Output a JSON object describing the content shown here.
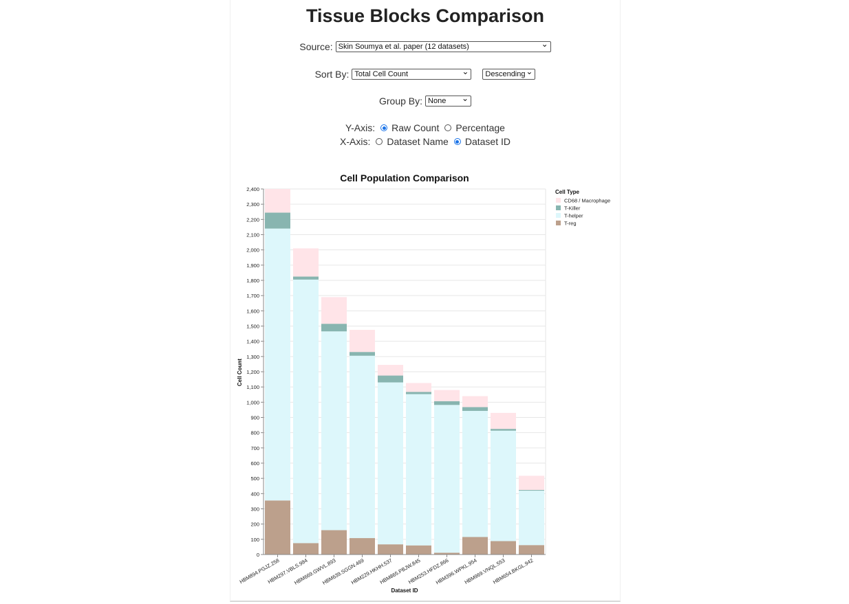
{
  "page": {
    "title": "Tissue Blocks Comparison"
  },
  "controls": {
    "source_label": "Source:",
    "source_value": "Skin Soumya et al. paper (12 datasets)",
    "sort_label": "Sort By:",
    "sort_value": "Total Cell Count",
    "sort_order_value": "Descending",
    "group_label": "Group By:",
    "group_value": "None",
    "yaxis_label": "Y-Axis:",
    "yaxis_options": [
      "Raw Count",
      "Percentage"
    ],
    "yaxis_selected": "Raw Count",
    "xaxis_label": "X-Axis:",
    "xaxis_options": [
      "Dataset Name",
      "Dataset ID"
    ],
    "xaxis_selected": "Dataset ID"
  },
  "chart_data": {
    "type": "bar",
    "stacked": true,
    "title": "Cell Population Comparison",
    "xlabel": "Dataset ID",
    "ylabel": "Cell Count",
    "ylim": [
      0,
      2400
    ],
    "ytick_step": 100,
    "legend_title": "Cell Type",
    "legend_position": "top-right",
    "categories": [
      "HBM894.PGJZ.258",
      "HBM297.VBLS.984",
      "HBM669.GWVL.893",
      "HBM639.SGGN.469",
      "HBM229.HKHH.537",
      "HBM865.PBJW.845",
      "HBM253.HFDZ.866",
      "HBM396.WPKL.954",
      "HBM969.VNQL.553",
      "HBM654.BKGL.942"
    ],
    "series": [
      {
        "name": "T-reg",
        "color": "#bca08c",
        "values": [
          355,
          75,
          160,
          108,
          67,
          60,
          12,
          115,
          88,
          62
        ]
      },
      {
        "name": "T-helper",
        "color": "#ddf7fb",
        "values": [
          1785,
          1730,
          1305,
          1197,
          1063,
          993,
          970,
          828,
          725,
          357
        ]
      },
      {
        "name": "T-Killer",
        "color": "#88b5b0",
        "values": [
          105,
          20,
          50,
          25,
          45,
          15,
          25,
          25,
          12,
          5
        ]
      },
      {
        "name": "CD68  / Macrophage",
        "color": "#ffe4e8",
        "values": [
          155,
          185,
          175,
          145,
          70,
          58,
          73,
          72,
          105,
          93
        ]
      }
    ],
    "legend_order": [
      "CD68  / Macrophage",
      "T-Killer",
      "T-helper",
      "T-reg"
    ]
  }
}
